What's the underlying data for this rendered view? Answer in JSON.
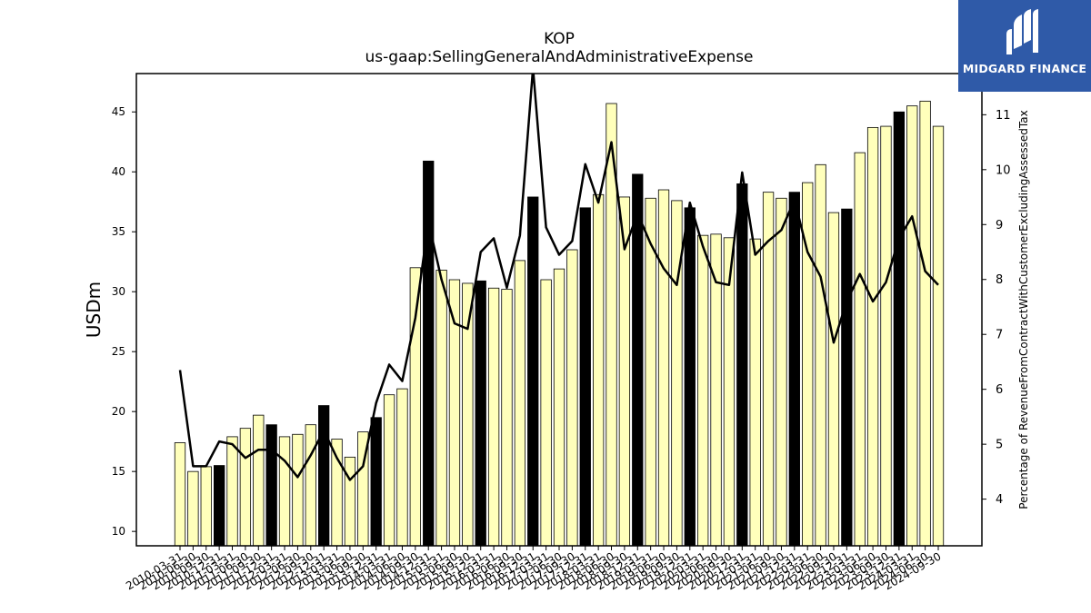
{
  "brand": {
    "name": "MIDGARD FINANCE",
    "bg_color": "#2f5aa8"
  },
  "chart_data": {
    "type": "bar",
    "title": "KOP",
    "subtitle": "us-gaap:SellingGeneralAndAdministrativeExpense",
    "ylabel": "USDm",
    "y2label": "Percentage of RevenueFromContractWithCustomerExcludingAssessedTax",
    "ylim": [
      8.8,
      48.2
    ],
    "y2lim": [
      3.15,
      11.75
    ],
    "yticks": [
      10,
      15,
      20,
      25,
      30,
      35,
      40,
      45
    ],
    "y2ticks": [
      4,
      5,
      6,
      7,
      8,
      9,
      10,
      11
    ],
    "grid": false,
    "colors": {
      "bar_default": "#ffffbb",
      "bar_highlight": "#000000",
      "line": "#000000"
    },
    "categories": [
      "2010-03-31",
      "2010-06-30",
      "2010-09-30",
      "2010-12-31",
      "2011-03-31",
      "2011-06-30",
      "2011-09-30",
      "2011-12-31",
      "2012-03-31",
      "2012-06-30",
      "2012-09-30",
      "2012-12-31",
      "2013-03-31",
      "2013-06-30",
      "2013-09-30",
      "2013-12-31",
      "2014-03-31",
      "2014-06-30",
      "2014-09-30",
      "2014-12-31",
      "2015-03-31",
      "2015-06-30",
      "2015-09-30",
      "2015-12-31",
      "2016-03-31",
      "2016-06-30",
      "2016-09-30",
      "2016-12-31",
      "2017-03-31",
      "2017-06-30",
      "2017-09-30",
      "2017-12-31",
      "2018-03-31",
      "2018-06-30",
      "2018-09-30",
      "2018-12-31",
      "2019-03-31",
      "2019-06-30",
      "2019-09-30",
      "2019-12-31",
      "2020-03-31",
      "2020-06-30",
      "2020-09-30",
      "2020-12-31",
      "2021-03-31",
      "2021-06-30",
      "2021-09-30",
      "2021-12-31",
      "2022-03-31",
      "2022-06-30",
      "2022-09-30",
      "2022-12-31",
      "2023-03-31",
      "2023-06-30",
      "2023-09-30",
      "2023-12-31",
      "2024-03-31",
      "2024-06-30",
      "2024-09-30"
    ],
    "series": [
      {
        "kind": "bar",
        "values": [
          17.4,
          15.0,
          15.4,
          15.5,
          17.9,
          18.6,
          19.7,
          18.9,
          17.9,
          18.1,
          18.9,
          20.5,
          17.7,
          16.2,
          18.3,
          19.5,
          21.4,
          21.9,
          32.0,
          40.9,
          31.8,
          31.0,
          30.7,
          30.9,
          30.3,
          30.2,
          32.6,
          37.9,
          31.0,
          31.9,
          33.5,
          37.0,
          38.1,
          45.7,
          37.9,
          39.8,
          37.8,
          38.5,
          37.6,
          37.0,
          34.7,
          34.8,
          34.5,
          39.0,
          34.4,
          38.3,
          37.8,
          38.3,
          39.1,
          40.6,
          36.6,
          36.9,
          41.6,
          43.7,
          43.8,
          45.0,
          45.5,
          45.9,
          43.8
        ],
        "highlight": [
          false,
          false,
          false,
          true,
          false,
          false,
          false,
          true,
          false,
          false,
          false,
          true,
          false,
          false,
          false,
          true,
          false,
          false,
          false,
          true,
          false,
          false,
          false,
          true,
          false,
          false,
          false,
          true,
          false,
          false,
          false,
          true,
          false,
          false,
          false,
          true,
          false,
          false,
          false,
          true,
          false,
          false,
          false,
          true,
          false,
          false,
          false,
          true,
          false,
          false,
          false,
          true,
          false,
          false,
          false,
          true,
          false,
          false,
          false
        ]
      },
      {
        "kind": "line",
        "axis": "right",
        "values": [
          6.35,
          4.6,
          4.6,
          5.05,
          5.0,
          4.75,
          4.9,
          4.9,
          4.7,
          4.4,
          4.8,
          5.25,
          4.75,
          4.35,
          4.6,
          5.75,
          6.45,
          6.15,
          7.3,
          9.05,
          8.0,
          7.2,
          7.1,
          8.5,
          8.75,
          7.85,
          8.8,
          11.85,
          8.95,
          8.45,
          8.7,
          10.1,
          9.4,
          10.5,
          8.55,
          9.2,
          8.65,
          8.2,
          7.9,
          9.4,
          8.6,
          7.95,
          7.9,
          9.95,
          8.45,
          8.7,
          8.9,
          9.45,
          8.5,
          8.05,
          6.85,
          7.6,
          8.1,
          7.6,
          7.95,
          8.75,
          9.15,
          8.15,
          7.9
        ]
      }
    ]
  }
}
